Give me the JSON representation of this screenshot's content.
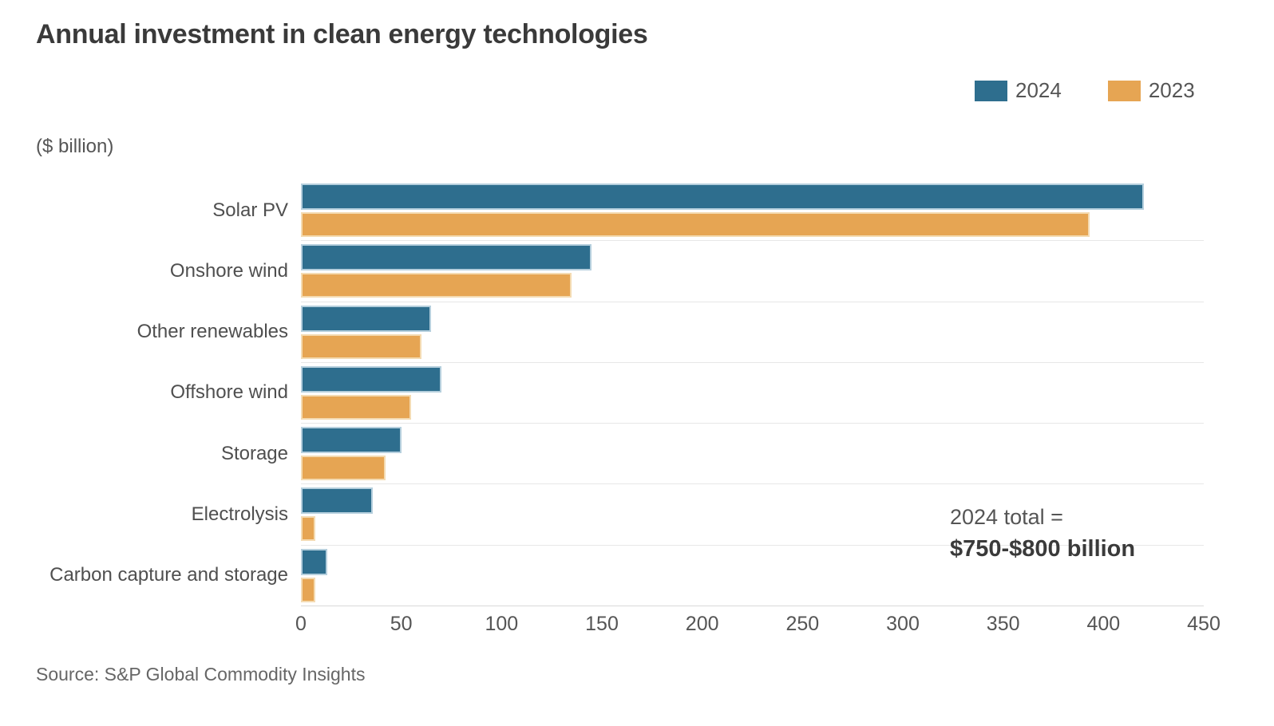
{
  "title": "Annual investment in clean energy technologies",
  "unit_label": "($ billion)",
  "annotation": {
    "line1": "2024 total =",
    "line2": "$750-$800 billion"
  },
  "source": "Source: S&P Global Commodity Insights",
  "colors": {
    "series_2024": "#2e6e8e",
    "series_2024_edge": "#b5cfdd",
    "series_2023": "#e6a553",
    "series_2023_edge": "#f4dbb2",
    "gridline": "#e7e7e7",
    "axis_line": "#d9d9d9",
    "title_text": "#3a3a3a",
    "body_text": "#555555"
  },
  "chart_data": {
    "type": "bar",
    "orientation": "horizontal",
    "title": "Annual investment in clean energy technologies",
    "xlabel": "($ billion)",
    "ylabel": "",
    "xlim": [
      0,
      450
    ],
    "xticks": [
      0,
      50,
      100,
      150,
      200,
      250,
      300,
      350,
      400,
      450
    ],
    "grid": "horizontal category separators only",
    "legend_position": "top-right",
    "categories": [
      "Solar PV",
      "Onshore wind",
      "Other renewables",
      "Offshore wind",
      "Storage",
      "Electrolysis",
      "Carbon capture and storage"
    ],
    "series": [
      {
        "name": "2024",
        "color": "#2e6e8e",
        "edge_color": "#b5cfdd",
        "values": [
          420,
          145,
          65,
          70,
          50,
          36,
          13
        ]
      },
      {
        "name": "2023",
        "color": "#e6a553",
        "edge_color": "#f4dbb2",
        "values": [
          393,
          135,
          60,
          55,
          42,
          7,
          7
        ]
      }
    ],
    "annotation": "2024 total = $750-$800 billion"
  }
}
